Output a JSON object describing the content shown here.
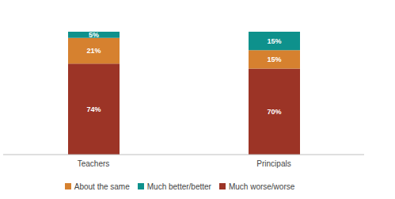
{
  "chart_data": {
    "type": "bar",
    "stacked": true,
    "data_labels": true,
    "tick_labels": "x",
    "legend": "bottom",
    "categories": [
      "Teachers",
      "Principals"
    ],
    "ylim": [
      0,
      100
    ],
    "series": [
      {
        "name": "Much worse/worse",
        "color": "#9c3426",
        "values": [
          74,
          70
        ],
        "value_labels": [
          "74%",
          "70%"
        ]
      },
      {
        "name": "About the same",
        "color": "#d6812f",
        "values": [
          21,
          15
        ],
        "value_labels": [
          "21%",
          "15%"
        ]
      },
      {
        "name": "Much better/better",
        "color": "#0e918c",
        "values": [
          5,
          15
        ],
        "value_labels": [
          "5%",
          "15%"
        ]
      }
    ]
  }
}
